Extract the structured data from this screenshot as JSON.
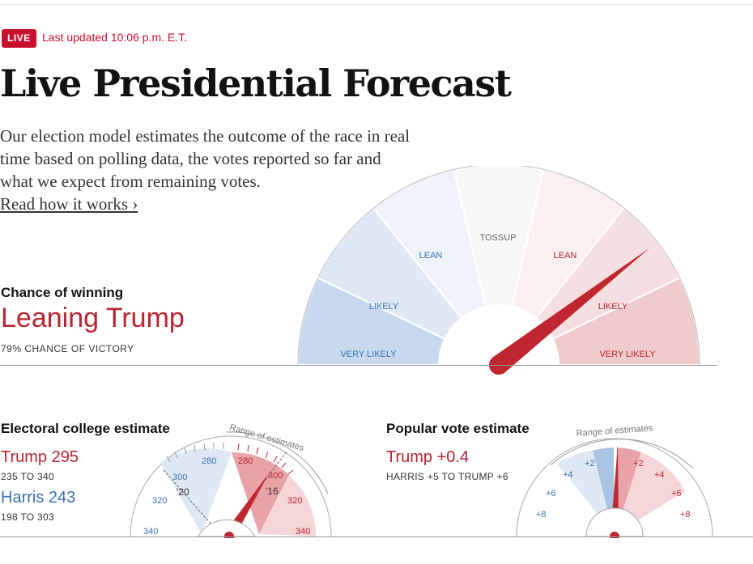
{
  "header": {
    "live_badge": "LIVE",
    "last_updated": "Last updated 10:06 p.m. E.T.",
    "title": "Live Presidential Forecast",
    "intro": "Our election model estimates the outcome of the race in real time based on polling data, the votes reported so far and what we expect from remaining votes.",
    "read_link": "Read how it works ›"
  },
  "chance": {
    "label": "Chance of winning",
    "value": "Leaning Trump",
    "sub": "79% CHANCE OF VICTORY",
    "trump_probability": 0.79
  },
  "main_gauge": {
    "segments": [
      "VERY LIKELY",
      "LIKELY",
      "LEAN",
      "TOSSUP",
      "LEAN",
      "LIKELY",
      "VERY LIKELY"
    ],
    "colors": {
      "blue_strong": "#c8d9ef",
      "blue_mid": "#dfe8f4",
      "blue_light": "#eef3f9",
      "tossup": "#f7f7f7",
      "red_light": "#fbeff0",
      "red_mid": "#f6dfe0",
      "red_strong": "#f0cbcd",
      "needle": "#c0262f"
    }
  },
  "electoral": {
    "title": "Electoral college estimate",
    "trump_label": "Trump 295",
    "trump_range": "235 TO 340",
    "harris_label": "Harris 243",
    "harris_range": "198 TO 303",
    "range_caption": "Range of estimates",
    "marker_20": "'20",
    "marker_16": "'16",
    "ticks_blue": [
      "280",
      "300",
      "320",
      "340"
    ],
    "ticks_red": [
      "280",
      "300",
      "320",
      "340"
    ]
  },
  "popular": {
    "title": "Popular vote estimate",
    "trump_label": "Trump +0.4",
    "range": "HARRIS +5 TO TRUMP +6",
    "range_caption": "Range of estimates",
    "ticks_blue": [
      "+2",
      "+4",
      "+6",
      "+8"
    ],
    "ticks_red": [
      "+2",
      "+4",
      "+6",
      "+8"
    ]
  }
}
